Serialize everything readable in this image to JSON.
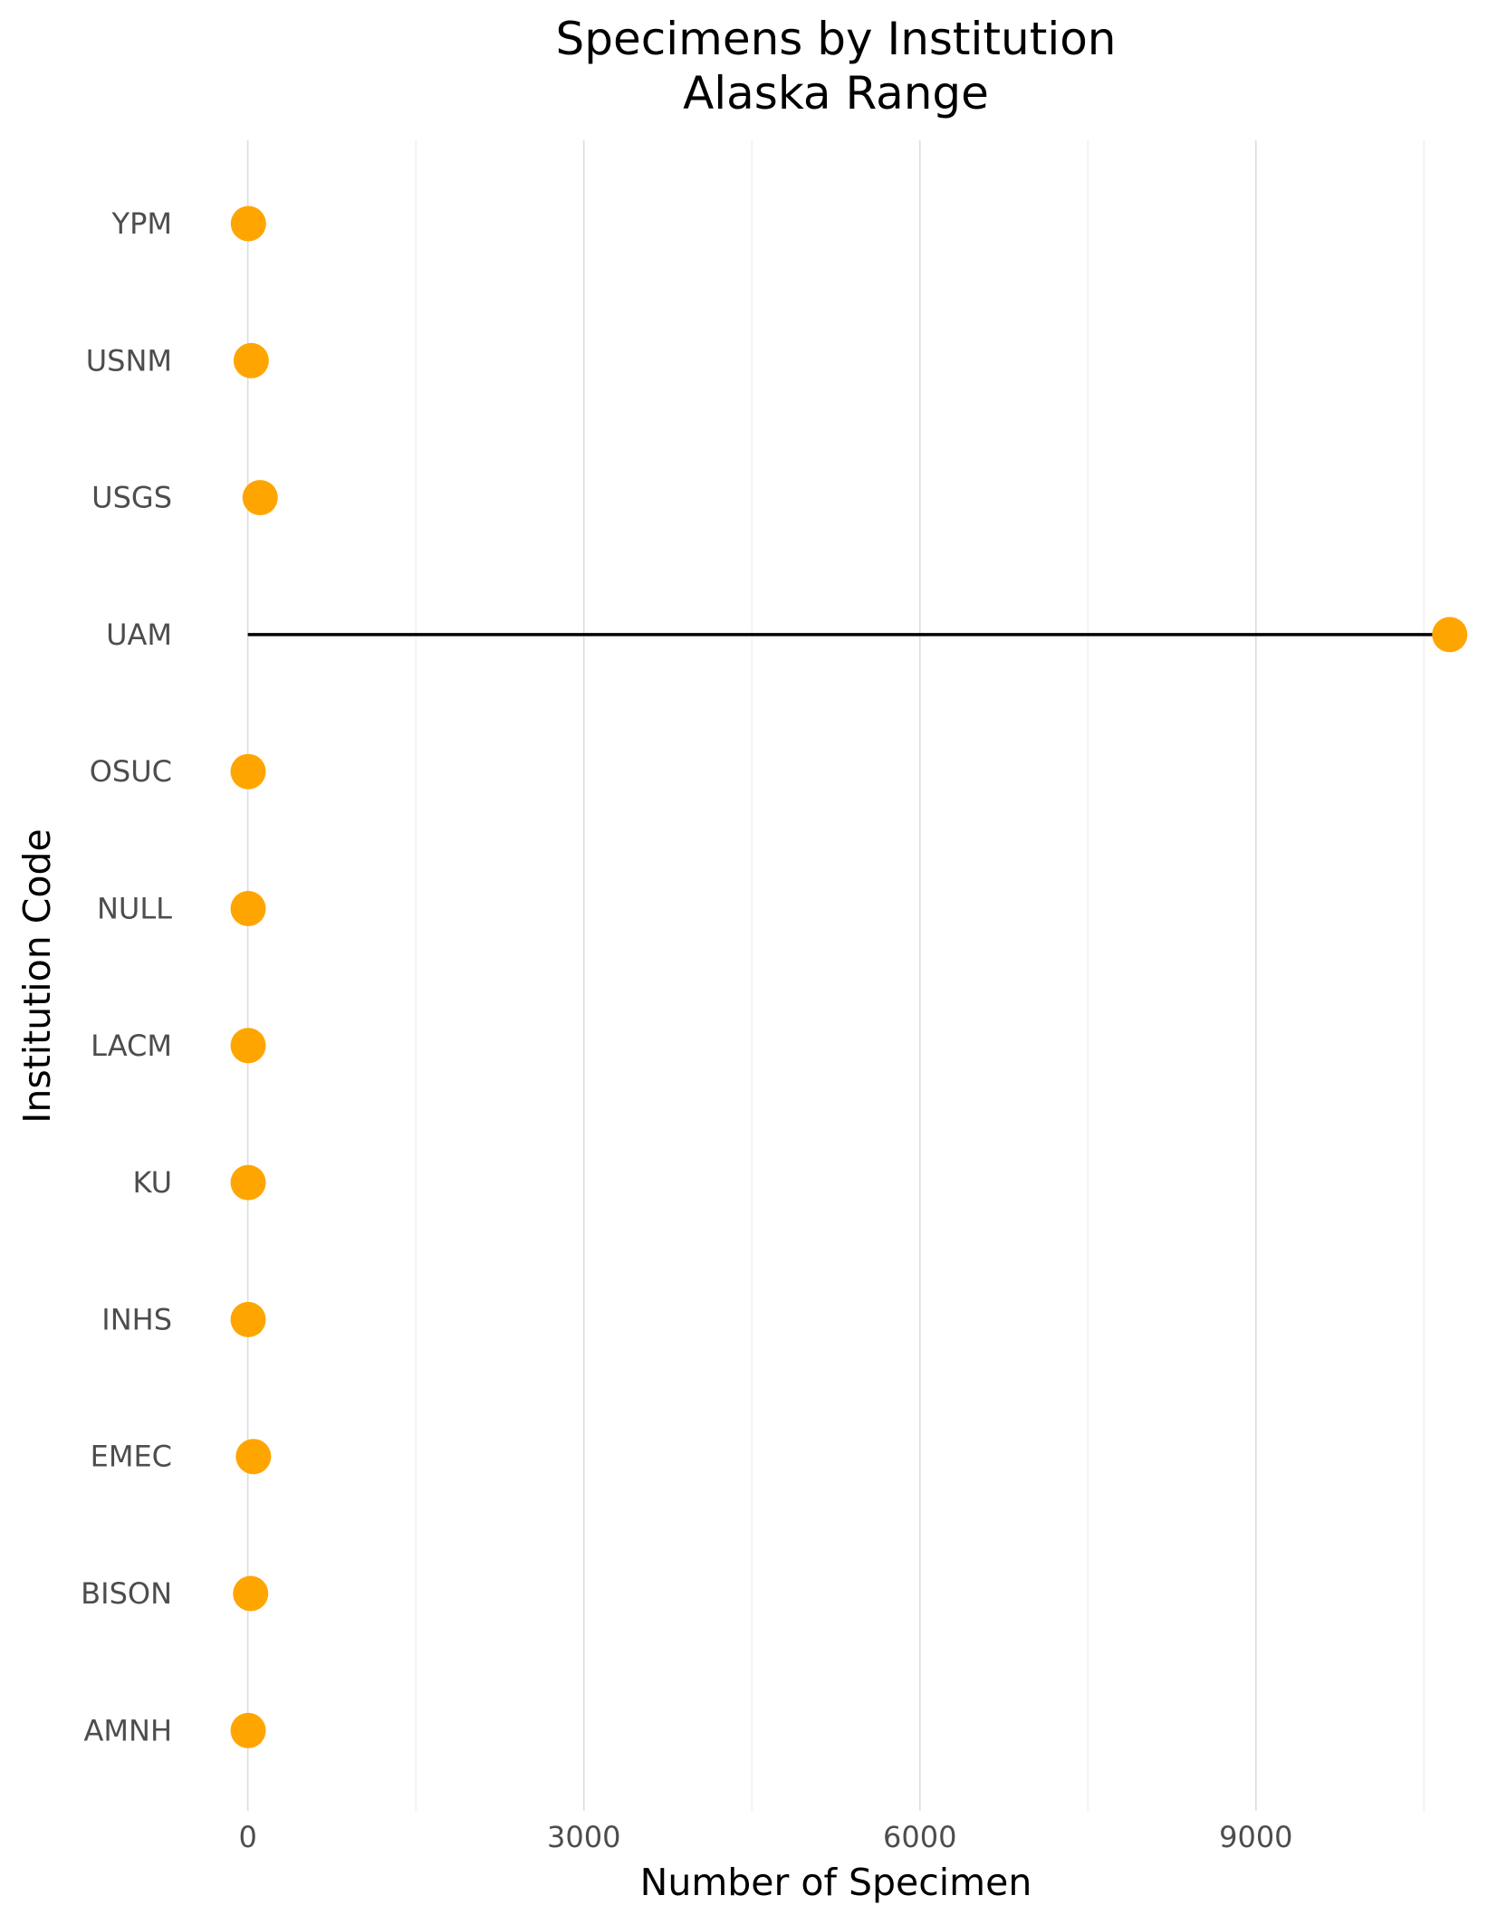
{
  "chart_data": {
    "type": "scatter",
    "title": "Specimens by Institution",
    "subtitle": "Alaska Range",
    "xlabel": "Number of Specimen",
    "ylabel": "Institution Code",
    "xlim": [
      -450,
      10950
    ],
    "x_ticks": [
      0,
      3000,
      6000,
      9000
    ],
    "x_tick_labels": [
      "0",
      "3000",
      "6000",
      "9000"
    ],
    "x_minor_gridlines": [
      1500,
      4500,
      7500,
      10500
    ],
    "grid": "vertical",
    "legend": "none",
    "point_color": "#FFA500",
    "segment_color": "#000000",
    "categories": [
      "YPM",
      "USNM",
      "USGS",
      "UAM",
      "OSUC",
      "NULL",
      "LACM",
      "KU",
      "INHS",
      "EMEC",
      "BISON",
      "AMNH"
    ],
    "values": [
      5,
      30,
      110,
      10730,
      3,
      3,
      3,
      3,
      3,
      50,
      25,
      3
    ]
  }
}
